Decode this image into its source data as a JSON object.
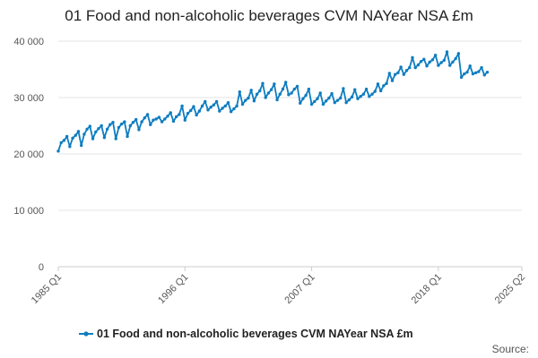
{
  "chart_data": {
    "type": "line",
    "title": "01 Food and non-alcoholic beverages CVM NAYear NSA £m",
    "xlabel": "",
    "ylabel": "",
    "ylim": [
      0,
      40000
    ],
    "y_ticks": [
      {
        "value": 0,
        "label": "0"
      },
      {
        "value": 10000,
        "label": "10 000"
      },
      {
        "value": 20000,
        "label": "20 000"
      },
      {
        "value": 30000,
        "label": "30 000"
      },
      {
        "value": 40000,
        "label": "40 000"
      }
    ],
    "x_range": [
      1985.0,
      2025.25
    ],
    "x_ticks": [
      {
        "value": 1985.0,
        "label": "1985 Q1"
      },
      {
        "value": 1996.0,
        "label": "1996 Q1"
      },
      {
        "value": 2007.0,
        "label": "2007 Q1"
      },
      {
        "value": 2018.0,
        "label": "2018 Q1"
      },
      {
        "value": 2025.25,
        "label": "2025 Q2"
      }
    ],
    "grid": "horizontal",
    "legend_position": "bottom",
    "source": "Source:",
    "series": [
      {
        "name": "01 Food and non-alcoholic beverages CVM NAYear NSA £m",
        "color": "#0f7dc0",
        "start_year": 1985,
        "start_quarter": 1,
        "values": [
          20500,
          22000,
          22400,
          23100,
          21300,
          22800,
          23300,
          24000,
          21500,
          23500,
          24400,
          24900,
          22700,
          23900,
          24500,
          25000,
          22900,
          24400,
          25200,
          25600,
          22700,
          24700,
          25300,
          25700,
          23100,
          25000,
          25600,
          26100,
          24300,
          25700,
          26400,
          27000,
          25200,
          26000,
          26200,
          26500,
          25700,
          26200,
          26700,
          27300,
          25800,
          26600,
          27000,
          28500,
          26000,
          27200,
          27700,
          28400,
          26900,
          27600,
          28500,
          29300,
          27800,
          28300,
          28700,
          29300,
          27600,
          28100,
          28500,
          29100,
          27500,
          28000,
          28500,
          31000,
          28800,
          29500,
          29900,
          31300,
          29400,
          30600,
          31200,
          32500,
          30000,
          30800,
          31400,
          32400,
          29600,
          30600,
          31500,
          32700,
          30500,
          30800,
          31500,
          32000,
          29000,
          29800,
          30400,
          31500,
          28800,
          29300,
          29800,
          30800,
          28800,
          29400,
          29900,
          30700,
          29100,
          29500,
          29900,
          31600,
          29100,
          29600,
          30100,
          31400,
          29800,
          30200,
          30600,
          31500,
          30200,
          30600,
          31100,
          32400,
          31200,
          32100,
          32500,
          34300,
          33000,
          34100,
          34400,
          35400,
          34100,
          34800,
          35300,
          37100,
          35300,
          35800,
          36400,
          36800,
          35600,
          36300,
          36700,
          37500,
          35700,
          36200,
          36600,
          38100,
          35700,
          36300,
          36900,
          37800,
          33600,
          34200,
          34500,
          35600,
          34200,
          34400,
          34600,
          35300,
          34000,
          34500
        ]
      }
    ]
  }
}
